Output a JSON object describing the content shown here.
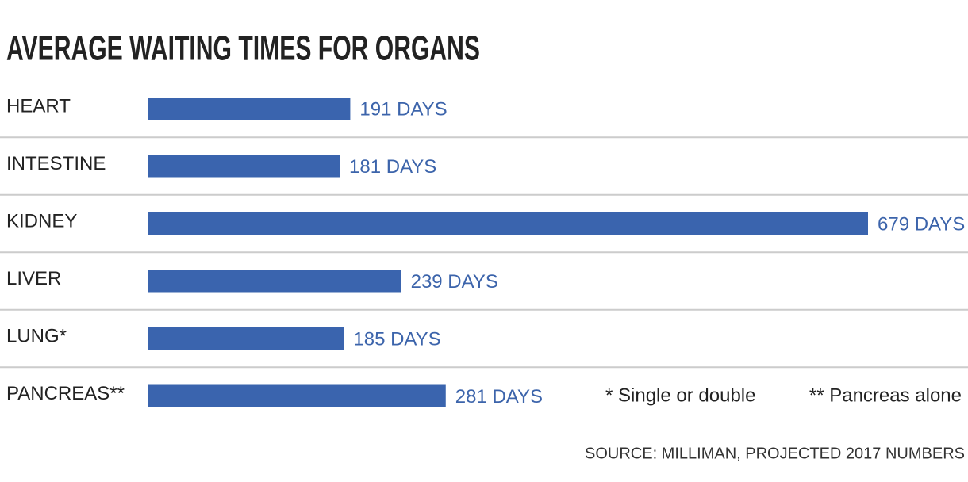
{
  "chart_data": {
    "type": "bar",
    "orientation": "horizontal",
    "title": "AVERAGE WAITING TIMES FOR ORGANS",
    "categories": [
      "HEART",
      "INTESTINE",
      "KIDNEY",
      "LIVER",
      "LUNG*",
      "PANCREAS**"
    ],
    "values": [
      191,
      181,
      679,
      239,
      185,
      281
    ],
    "value_labels": [
      "191 DAYS",
      "181 DAYS",
      "679 DAYS",
      "239 DAYS",
      "185 DAYS",
      "281 DAYS"
    ],
    "color": "#3a64ae",
    "notes": [
      "* Single or double",
      "** Pancreas alone"
    ],
    "source": "SOURCE: MILLIMAN, PROJECTED 2017 NUMBERS"
  }
}
